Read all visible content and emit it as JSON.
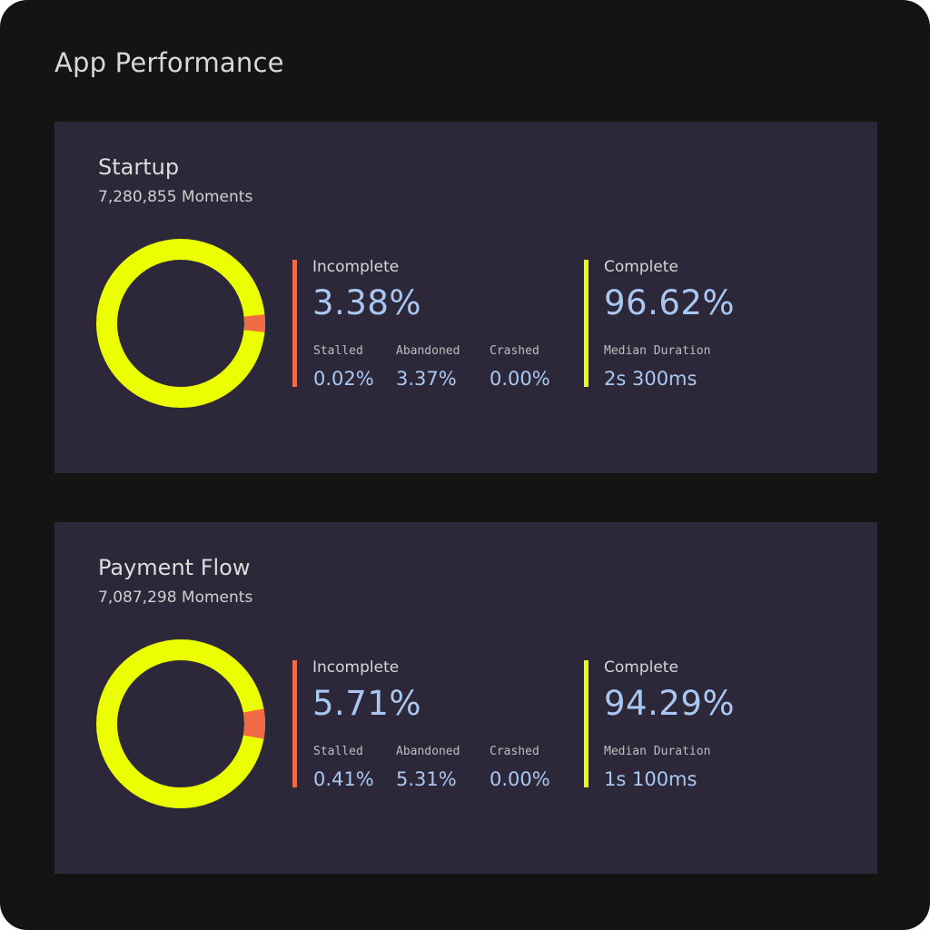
{
  "page": {
    "title": "App Performance",
    "background_color": "#141414",
    "card_color": "#2d2839"
  },
  "colors": {
    "incomplete": "#f06b46",
    "complete": "#ecff00",
    "value_text": "#a8c8f2"
  },
  "cards": [
    {
      "title": "Startup",
      "subtitle": "7,280,855 Moments",
      "incomplete_fraction": 0.0338,
      "incomplete": {
        "label": "Incomplete",
        "value": "3.38%",
        "breakdown": [
          {
            "label": "Stalled",
            "value": "0.02%"
          },
          {
            "label": "Abandoned",
            "value": "3.37%"
          },
          {
            "label": "Crashed",
            "value": "0.00%"
          }
        ]
      },
      "complete": {
        "label": "Complete",
        "value": "96.62%",
        "duration_label": "Median Duration",
        "duration_value": "2s 300ms"
      }
    },
    {
      "title": "Payment Flow",
      "subtitle": "7,087,298 Moments",
      "incomplete_fraction": 0.0571,
      "incomplete": {
        "label": "Incomplete",
        "value": "5.71%",
        "breakdown": [
          {
            "label": "Stalled",
            "value": "0.41%"
          },
          {
            "label": "Abandoned",
            "value": "5.31%"
          },
          {
            "label": "Crashed",
            "value": "0.00%"
          }
        ]
      },
      "complete": {
        "label": "Complete",
        "value": "94.29%",
        "duration_label": "Median Duration",
        "duration_value": "1s 100ms"
      }
    }
  ]
}
